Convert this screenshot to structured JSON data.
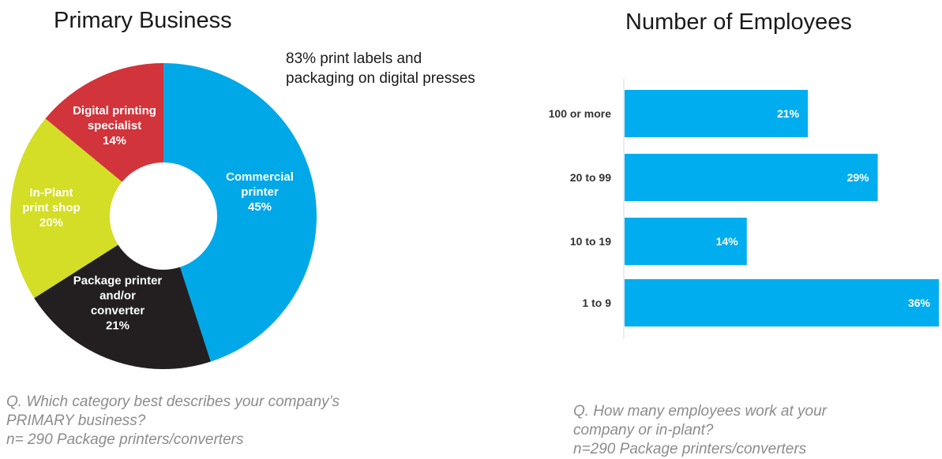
{
  "colors": {
    "commercial": "#00A8E8",
    "package": "#231F20",
    "inplant": "#D4DE26",
    "digital": "#D1343B",
    "bar": "#00ADEF",
    "text_dark": "#1a1a1a",
    "question_gray": "#8c8c8c"
  },
  "donut": {
    "title": "Primary Business",
    "annotation_lines": [
      "83% print labels and",
      "packaging on digital presses"
    ]
  },
  "bars": {
    "title": "Number of Employees"
  },
  "questions": {
    "left_lines": [
      "Q.  Which category best describes your company’s",
      "PRIMARY business?",
      "n= 290 Package printers/converters"
    ],
    "right_lines": [
      "Q. How many employees work at your",
      "company or in-plant?",
      "n=290 Package printers/converters"
    ]
  },
  "chart_data": [
    {
      "type": "pie",
      "title": "Primary Business",
      "slices": [
        {
          "label_lines": [
            "Commercial",
            "printer",
            "45%"
          ],
          "value": 45,
          "color": "#00A8E8",
          "text_color": "#ffffff"
        },
        {
          "label_lines": [
            "Package printer",
            "and/or",
            "converter",
            "21%"
          ],
          "value": 21,
          "color": "#231F20",
          "text_color": "#ffffff"
        },
        {
          "label_lines": [
            "In-Plant",
            "print shop",
            "20%"
          ],
          "value": 20,
          "color": "#D4DE26",
          "text_color": "#ffffff"
        },
        {
          "label_lines": [
            "Digital printing",
            "specialist",
            "14%"
          ],
          "value": 14,
          "color": "#D1343B",
          "text_color": "#ffffff"
        }
      ]
    },
    {
      "type": "bar",
      "orientation": "horizontal",
      "title": "Number of Employees",
      "categories": [
        "100 or more",
        "20 to 99",
        "10 to 19",
        "1 to 9"
      ],
      "values": [
        21,
        29,
        14,
        36
      ],
      "value_labels": [
        "21%",
        "29%",
        "14%",
        "36%"
      ],
      "xlim": [
        0,
        36
      ]
    }
  ]
}
